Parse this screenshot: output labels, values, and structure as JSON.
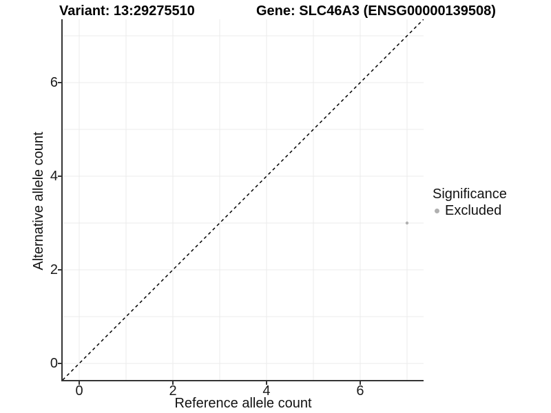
{
  "titles": {
    "variant": "Variant: 13:29275510",
    "gene": "Gene: SLC46A3 (ENSG00000139508)"
  },
  "chart_data": {
    "type": "scatter",
    "xlabel": "Reference allele count",
    "ylabel": "Alternative allele count",
    "xlim": [
      -0.353,
      7.353
    ],
    "ylim": [
      -0.353,
      7.353
    ],
    "x_ticks": [
      0,
      2,
      4,
      6
    ],
    "y_ticks": [
      0,
      2,
      4,
      6
    ],
    "gridline_values": [
      0,
      1,
      2,
      3,
      4,
      5,
      6,
      7
    ],
    "grid_on": true,
    "points": [
      {
        "x": 7,
        "y": 3,
        "series": "Excluded"
      }
    ],
    "identity_line": {
      "style": "dashed",
      "from": [
        -0.353,
        -0.353
      ],
      "to": [
        7.353,
        7.353
      ],
      "slope": 1,
      "intercept": 0
    },
    "legend": {
      "title": "Significance",
      "position": "right",
      "entries": [
        {
          "label": "Excluded",
          "color": "#b0b0b0"
        }
      ]
    },
    "colors": {
      "point": "#b0b0b0",
      "grid": "#ebebeb",
      "axis": "#333333",
      "dashed_line": "#000000",
      "text": "#111111"
    }
  }
}
